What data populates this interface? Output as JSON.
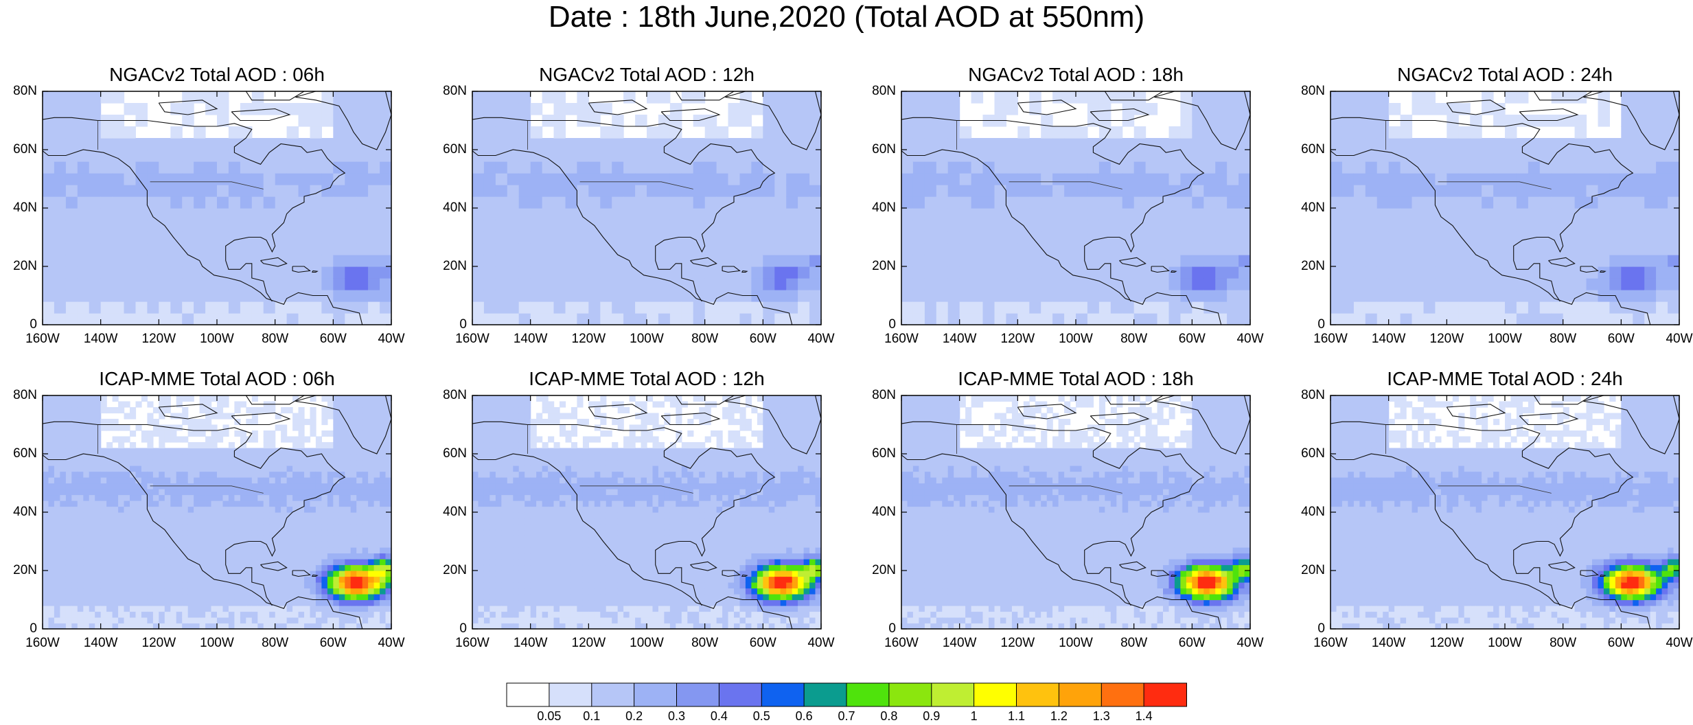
{
  "title": "Date : 18th June,2020 (Total AOD at 550nm)",
  "map_extent": {
    "lon": [
      -160,
      -40
    ],
    "lat": [
      0,
      80
    ]
  },
  "lon_ticks": [
    "160W",
    "140W",
    "120W",
    "100W",
    "80W",
    "60W",
    "40W"
  ],
  "lat_ticks": [
    "0",
    "20N",
    "40N",
    "60N",
    "80N"
  ],
  "panels": [
    {
      "title": "NGACv2 Total AOD : 06h",
      "model": "NGACv2",
      "hour": "06h"
    },
    {
      "title": "NGACv2 Total AOD : 12h",
      "model": "NGACv2",
      "hour": "12h"
    },
    {
      "title": "NGACv2 Total AOD : 18h",
      "model": "NGACv2",
      "hour": "18h"
    },
    {
      "title": "NGACv2 Total AOD : 24h",
      "model": "NGACv2",
      "hour": "24h"
    },
    {
      "title": "ICAP-MME Total AOD : 06h",
      "model": "ICAP-MME",
      "hour": "06h"
    },
    {
      "title": "ICAP-MME Total AOD : 12h",
      "model": "ICAP-MME",
      "hour": "12h"
    },
    {
      "title": "ICAP-MME Total AOD : 18h",
      "model": "ICAP-MME",
      "hour": "18h"
    },
    {
      "title": "ICAP-MME Total AOD : 24h",
      "model": "ICAP-MME",
      "hour": "24h"
    }
  ],
  "colorbar": {
    "labels": [
      "0.05",
      "0.1",
      "0.2",
      "0.3",
      "0.4",
      "0.5",
      "0.6",
      "0.7",
      "0.8",
      "0.9",
      "1",
      "1.1",
      "1.2",
      "1.3",
      "1.4"
    ],
    "colors": [
      "#ffffff",
      "#d6e0fb",
      "#b6c6f7",
      "#9db2f5",
      "#8497f1",
      "#6a74ef",
      "#0f62f0",
      "#0b9c8f",
      "#4fe30c",
      "#8be60e",
      "#bfee32",
      "#ffff00",
      "#ffc20e",
      "#ffa30a",
      "#ff7010",
      "#ff2c10"
    ]
  }
}
